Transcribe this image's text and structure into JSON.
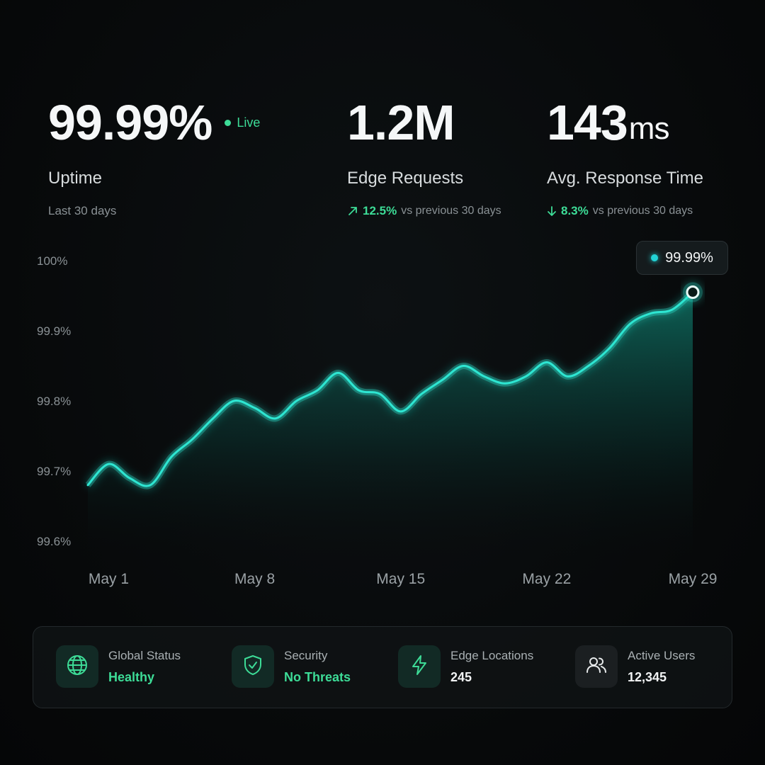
{
  "kpis": {
    "uptime": {
      "value": "99.99%",
      "live_label": "Live",
      "label": "Uptime",
      "sub": "Last 30 days"
    },
    "requests": {
      "value": "1.2M",
      "label": "Edge Requests",
      "change": "12.5%",
      "change_note": "vs previous 30 days",
      "direction": "up"
    },
    "response": {
      "value": "143",
      "unit": "ms",
      "label": "Avg. Response Time",
      "change": "8.3%",
      "change_note": "vs previous 30 days",
      "direction": "down"
    }
  },
  "callout": {
    "label": "99.99%"
  },
  "chart_data": {
    "type": "area",
    "ylabel": "",
    "xlabel": "",
    "ylim": [
      99.6,
      100
    ],
    "yticks": [
      "100%",
      "99.9%",
      "99.8%",
      "99.7%",
      "99.6%"
    ],
    "ytick_values": [
      100,
      99.9,
      99.8,
      99.7,
      99.6
    ],
    "xticks": [
      "May 1",
      "May 8",
      "May 15",
      "May 22",
      "May 29"
    ],
    "xtick_days": [
      1,
      8,
      15,
      22,
      29
    ],
    "x_days": [
      0,
      1,
      2,
      3,
      4,
      5,
      6,
      7,
      8,
      9,
      10,
      11,
      12,
      13,
      14,
      15,
      16,
      17,
      18,
      19,
      20,
      21,
      22,
      23,
      24,
      25,
      26,
      27,
      28,
      29
    ],
    "values": [
      99.68,
      99.71,
      99.69,
      99.68,
      99.72,
      99.745,
      99.775,
      99.8,
      99.79,
      99.775,
      99.8,
      99.815,
      99.84,
      99.815,
      99.81,
      99.785,
      99.81,
      99.83,
      99.85,
      99.835,
      99.825,
      99.835,
      99.855,
      99.835,
      99.85,
      99.875,
      99.91,
      99.925,
      99.93,
      99.955
    ],
    "line_color": "#2ee6d2",
    "grid": false
  },
  "status": [
    {
      "title": "Global Status",
      "value": "Healthy",
      "icon": "globe-icon",
      "value_color": "accent"
    },
    {
      "title": "Security",
      "value": "No Threats",
      "icon": "shield-check-icon",
      "value_color": "accent"
    },
    {
      "title": "Edge Locations",
      "value": "245",
      "icon": "lightning-icon",
      "value_color": "white"
    },
    {
      "title": "Active Users",
      "value": "12,345",
      "icon": "users-icon",
      "value_color": "white"
    }
  ]
}
